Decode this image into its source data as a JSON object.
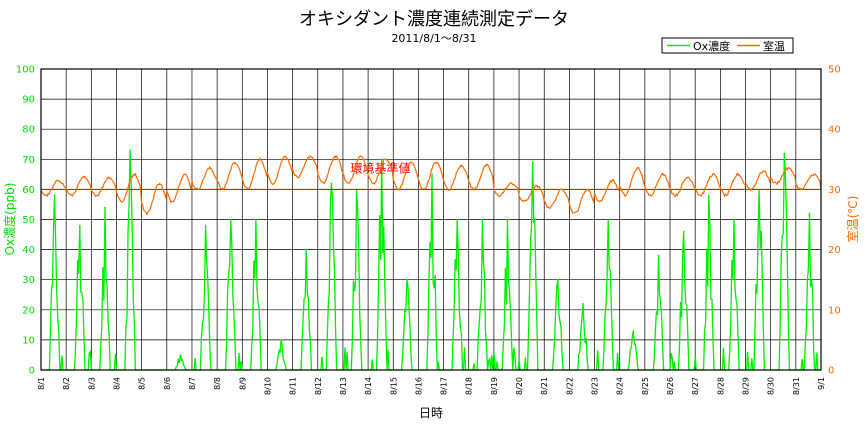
{
  "chart_data": {
    "type": "line",
    "title": "オキシダント濃度連続測定データ",
    "subtitle": "2011/8/1～8/31",
    "xlabel": "日時",
    "ylabel_left": "Ox濃度(ppb)",
    "ylabel_right": "室温(℃)",
    "ylim_left": [
      0,
      100
    ],
    "ylim_right": [
      0,
      50
    ],
    "yticks_left": [
      "0",
      "10",
      "20",
      "30",
      "40",
      "50",
      "60",
      "70",
      "80",
      "90",
      "100"
    ],
    "yticks_right": [
      "0",
      "10",
      "20",
      "30",
      "40",
      "50"
    ],
    "grid": true,
    "legend_position": "top-right",
    "x_labels": [
      "8/1",
      "8/2",
      "8/3",
      "8/4",
      "8/5",
      "8/6",
      "8/7",
      "8/8",
      "8/9",
      "8/10",
      "8/11",
      "8/12",
      "8/13",
      "8/14",
      "8/15",
      "8/16",
      "8/17",
      "8/18",
      "8/19",
      "8/20",
      "8/21",
      "8/22",
      "8/23",
      "8/24",
      "8/25",
      "8/26",
      "8/27",
      "8/28",
      "8/29",
      "8/30",
      "8/31",
      "9/1"
    ],
    "reference_line": {
      "label": "環境基準値",
      "value": 60,
      "axis": "left",
      "color": "#ff0000"
    },
    "series": [
      {
        "name": "Ox濃度",
        "axis": "left",
        "color": "#00ee00",
        "daily_peak": [
          58,
          48,
          54,
          73,
          0,
          5,
          48,
          50,
          50,
          10,
          40,
          62,
          60,
          70,
          30,
          65,
          50,
          50,
          50,
          69,
          30,
          22,
          50,
          13,
          38,
          46,
          58,
          50,
          60,
          72,
          52
        ]
      },
      {
        "name": "室温",
        "axis": "right",
        "color": "#ff6a00",
        "daily_min": [
          29,
          29,
          29,
          28,
          26,
          28,
          30,
          30,
          30,
          31,
          32,
          31,
          31,
          31,
          30,
          30,
          30,
          30,
          29,
          28,
          27,
          26,
          28,
          29,
          29,
          29,
          29,
          29,
          30,
          31,
          30
        ],
        "daily_max": [
          31.5,
          32,
          32,
          32.5,
          31,
          32.5,
          33.5,
          34.5,
          35,
          35.5,
          35.5,
          35.5,
          35.5,
          35,
          34.5,
          34.5,
          34,
          34,
          31,
          30.5,
          30,
          30,
          31.5,
          33.5,
          32.5,
          32,
          32.5,
          32.5,
          33,
          33.5,
          32.5
        ]
      }
    ]
  }
}
